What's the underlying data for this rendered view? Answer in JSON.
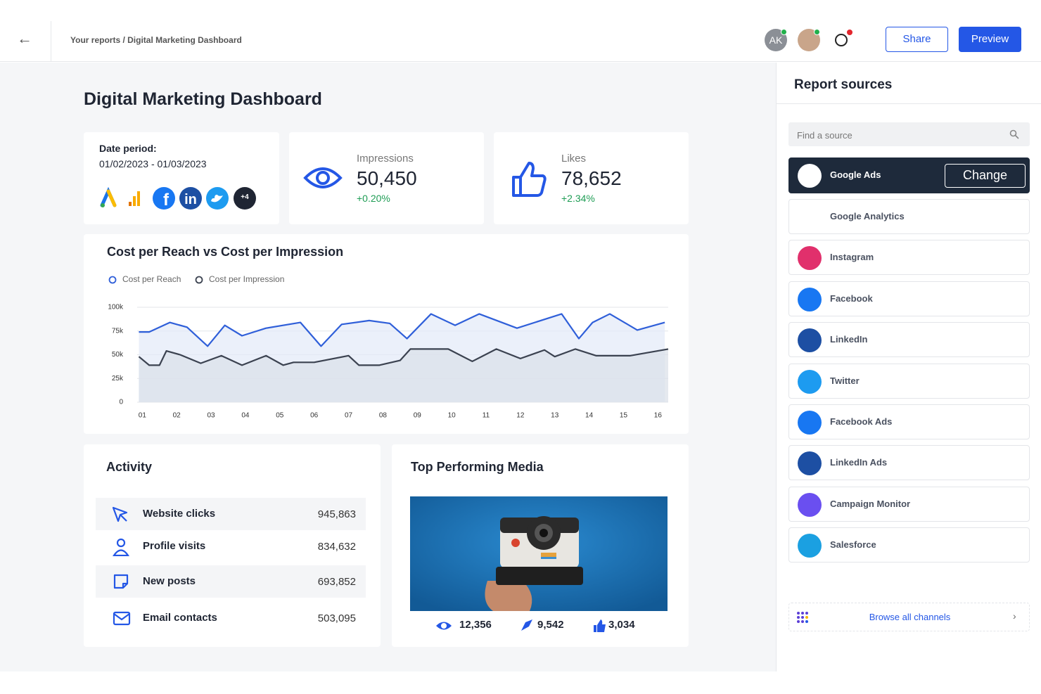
{
  "header": {
    "breadcrumb": "Your reports / Digital Marketing Dashboard",
    "avatar": "AK",
    "share": "Share",
    "preview": "Preview"
  },
  "dashboard": {
    "title": "Digital Marketing Dashboard"
  },
  "date_card": {
    "label": "Date period:",
    "value": "01/02/2023 - 01/03/2023",
    "more": "+4"
  },
  "kpis": [
    {
      "label": "Impressions",
      "value": "50,450",
      "change": "+0.20%"
    },
    {
      "label": "Likes",
      "value": "78,652",
      "change": "+2.34%"
    }
  ],
  "chart_data": {
    "type": "line",
    "title": "Cost per Reach vs Cost per Impression",
    "xlim": [
      0.85,
      16.3
    ],
    "xticks": [
      {
        "value": 1,
        "label": "01"
      },
      {
        "value": 2,
        "label": "02"
      },
      {
        "value": 3,
        "label": "03"
      },
      {
        "value": 4,
        "label": "04"
      },
      {
        "value": 5,
        "label": "05"
      },
      {
        "value": 6,
        "label": "06"
      },
      {
        "value": 7,
        "label": "07"
      },
      {
        "value": 8,
        "label": "08"
      },
      {
        "value": 9,
        "label": "09"
      },
      {
        "value": 10,
        "label": "10"
      },
      {
        "value": 11,
        "label": "11"
      },
      {
        "value": 12,
        "label": "12"
      },
      {
        "value": 13,
        "label": "13"
      },
      {
        "value": 14,
        "label": "14"
      },
      {
        "value": 15,
        "label": "15"
      },
      {
        "value": 16,
        "label": "16"
      }
    ],
    "ylim": [
      0,
      100000
    ],
    "yticks": [
      0,
      {
        "value": 25000,
        "label": "25k"
      },
      {
        "value": 50000,
        "label": "50k"
      },
      {
        "value": 75000,
        "label": "75k"
      },
      {
        "value": 100000,
        "label": "100k"
      }
    ],
    "grid": true,
    "legend": "top-left",
    "series": [
      {
        "name": "Cost per Reach",
        "color": "#2f5fd9",
        "fill": "#e3e9f8",
        "x": [
          0.9,
          1.2,
          1.8,
          2.3,
          2.9,
          3.4,
          3.9,
          4.6,
          5.6,
          6.2,
          6.8,
          7.6,
          8.2,
          8.7,
          9.4,
          10.1,
          10.8,
          11.9,
          13.2,
          13.7,
          14.1,
          14.6,
          15.4,
          16.2
        ],
        "values": [
          74000,
          74000,
          84000,
          79000,
          59000,
          81000,
          70000,
          78000,
          84000,
          59000,
          82000,
          86000,
          83000,
          67000,
          93000,
          81000,
          93000,
          78000,
          93000,
          67000,
          84000,
          93000,
          76000,
          84000
        ]
      },
      {
        "name": "Cost per Impression",
        "color": "#3b4250",
        "fill": "#dadfe8",
        "x": [
          0.9,
          1.2,
          1.5,
          1.7,
          2.1,
          2.7,
          3.3,
          3.9,
          4.6,
          5.1,
          5.4,
          6.0,
          7.0,
          7.3,
          7.9,
          8.5,
          8.8,
          9.9,
          10.6,
          11.3,
          12.0,
          12.7,
          13.0,
          13.6,
          14.2,
          14.8,
          15.2,
          16.3
        ],
        "values": [
          48000,
          39000,
          39000,
          54000,
          50000,
          41000,
          49000,
          39000,
          49000,
          39000,
          42000,
          42000,
          49000,
          39000,
          39000,
          44000,
          56000,
          56000,
          43000,
          56000,
          46000,
          55000,
          48000,
          56000,
          49000,
          49000,
          49000,
          56000
        ]
      }
    ]
  },
  "activity": {
    "title": "Activity",
    "rows": [
      {
        "label": "Website clicks",
        "value": "945,863"
      },
      {
        "label": "Profile visits",
        "value": "834,632"
      },
      {
        "label": "New posts",
        "value": "693,852"
      },
      {
        "label": "Email contacts",
        "value": "503,095"
      }
    ]
  },
  "media": {
    "title": "Top Performing Media",
    "stats": [
      "12,356",
      "9,542",
      "3,034"
    ]
  },
  "sources": {
    "title": "Report sources",
    "search": "Find a source",
    "change": "Change",
    "items": [
      "Google Ads",
      "Google Analytics",
      "Instagram",
      "Facebook",
      "LinkedIn",
      "Twitter",
      "Facebook Ads",
      "LinkedIn Ads",
      "Campaign Monitor",
      "Salesforce"
    ],
    "browse": "Browse all channels"
  }
}
